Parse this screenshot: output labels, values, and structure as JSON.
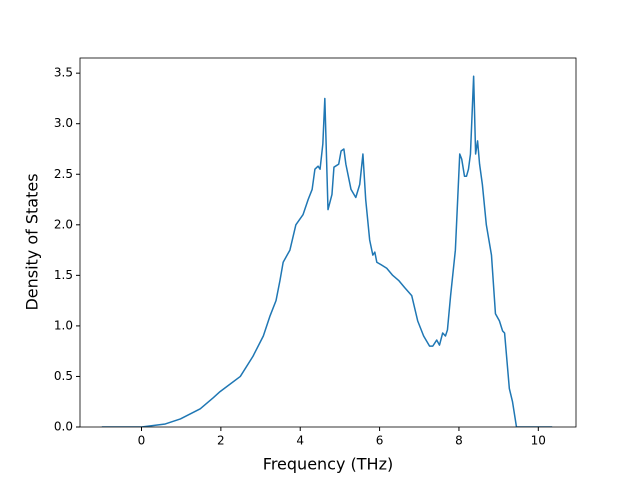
{
  "chart_data": {
    "type": "line",
    "xlabel": "Frequency (THz)",
    "ylabel": "Density of States",
    "x": [
      -1.0,
      0,
      0.6,
      0.98,
      1.48,
      1.81,
      1.98,
      2.49,
      2.81,
      3.07,
      3.24,
      3.39,
      3.49,
      3.57,
      3.74,
      3.89,
      4.07,
      4.2,
      4.3,
      4.37,
      4.45,
      4.5,
      4.57,
      4.62,
      4.7,
      4.8,
      4.85,
      4.97,
      5.03,
      5.1,
      5.15,
      5.28,
      5.4,
      5.5,
      5.58,
      5.65,
      5.75,
      5.83,
      5.88,
      5.93,
      6.06,
      6.18,
      6.33,
      6.48,
      6.63,
      6.81,
      6.96,
      7.11,
      7.26,
      7.34,
      7.44,
      7.51,
      7.59,
      7.66,
      7.71,
      7.79,
      7.91,
      8.02,
      8.07,
      8.14,
      8.19,
      8.24,
      8.29,
      8.37,
      8.42,
      8.47,
      8.52,
      8.59,
      8.69,
      8.82,
      8.92,
      9.02,
      9.1,
      9.15,
      9.27,
      9.35,
      9.45,
      10.35
    ],
    "series": [
      {
        "name": "DOS",
        "color": "#1f77b4",
        "values": [
          0,
          0,
          0.03,
          0.08,
          0.18,
          0.29,
          0.35,
          0.5,
          0.7,
          0.9,
          1.1,
          1.25,
          1.45,
          1.63,
          1.75,
          2.0,
          2.1,
          2.25,
          2.35,
          2.55,
          2.58,
          2.55,
          2.8,
          3.25,
          2.15,
          2.3,
          2.57,
          2.6,
          2.73,
          2.75,
          2.6,
          2.35,
          2.27,
          2.4,
          2.7,
          2.25,
          1.85,
          1.7,
          1.73,
          1.63,
          1.6,
          1.57,
          1.5,
          1.45,
          1.38,
          1.3,
          1.05,
          0.9,
          0.8,
          0.8,
          0.86,
          0.81,
          0.93,
          0.9,
          0.96,
          1.3,
          1.75,
          2.7,
          2.65,
          2.48,
          2.48,
          2.55,
          2.7,
          3.47,
          2.7,
          2.83,
          2.6,
          2.4,
          2.0,
          1.7,
          1.12,
          1.05,
          0.95,
          0.93,
          0.38,
          0.25,
          0,
          0
        ]
      }
    ],
    "xlim": [
      -1.55,
      10.95
    ],
    "ylim": [
      0,
      3.65
    ],
    "xticks": [
      0,
      2,
      4,
      6,
      8,
      10
    ],
    "yticks": [
      {
        "value": 0,
        "label": "0.0"
      },
      {
        "value": 0.5,
        "label": "0.5"
      },
      {
        "value": 1,
        "label": "1.0"
      },
      {
        "value": 1.5,
        "label": "1.5"
      },
      {
        "value": 2,
        "label": "2.0"
      },
      {
        "value": 2.5,
        "label": "2.5"
      },
      {
        "value": 3,
        "label": "3.0"
      },
      {
        "value": 3.5,
        "label": "3.5"
      }
    ]
  }
}
